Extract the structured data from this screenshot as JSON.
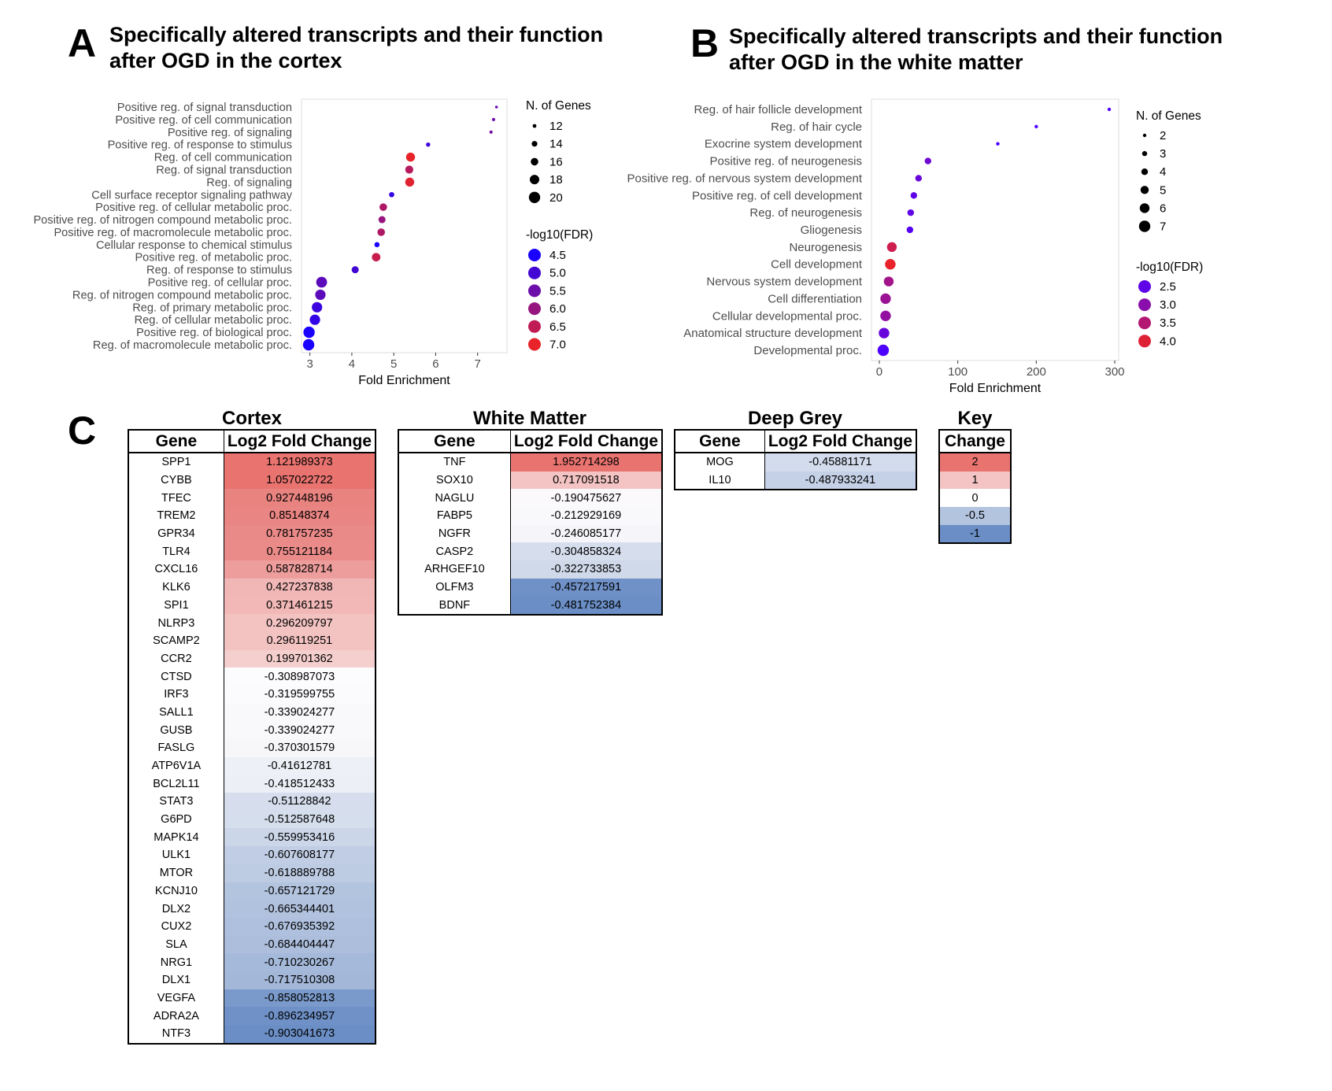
{
  "panels": {
    "a": {
      "letter": "A",
      "title": "Specifically altered transcripts and their function\nafter OGD in the cortex"
    },
    "b": {
      "letter": "B",
      "title": "Specifically altered transcripts and their function\nafter OGD in the white matter"
    },
    "c": {
      "letter": "C"
    }
  },
  "chart_data": [
    {
      "type": "scatter",
      "xlabel": "Fold Enrichment",
      "xticks": [
        3,
        4,
        5,
        6,
        7
      ],
      "xlim": [
        2.8,
        7.7
      ],
      "size_legend_title": "N. of Genes",
      "size_legend": [
        12,
        14,
        16,
        18,
        20
      ],
      "color_legend_title": "-log10(FDR)",
      "color_legend": [
        4.5,
        5.0,
        5.5,
        6.0,
        6.5,
        7.0
      ],
      "color_scale": {
        "low": "#1a00ff",
        "high": "#e8232a",
        "min": 4.5,
        "max": 7.0
      },
      "grid": false,
      "points": [
        {
          "term": "Positive reg. of signal transduction",
          "fold": 7.45,
          "genes": 11,
          "fdr": 5.4
        },
        {
          "term": "Positive reg. of cell communication",
          "fold": 7.38,
          "genes": 11.5,
          "fdr": 5.5
        },
        {
          "term": "Positive reg. of signaling",
          "fold": 7.32,
          "genes": 11.5,
          "fdr": 5.6
        },
        {
          "term": "Positive reg. of response to stimulus",
          "fold": 5.82,
          "genes": 12.5,
          "fdr": 4.9
        },
        {
          "term": "Reg. of cell communication",
          "fold": 5.4,
          "genes": 17.5,
          "fdr": 7.0
        },
        {
          "term": "Reg. of signal transduction",
          "fold": 5.37,
          "genes": 16.5,
          "fdr": 6.4
        },
        {
          "term": "Reg. of signaling",
          "fold": 5.38,
          "genes": 17.5,
          "fdr": 6.9
        },
        {
          "term": "Cell surface receptor signaling pathway",
          "fold": 4.95,
          "genes": 13.5,
          "fdr": 4.8
        },
        {
          "term": "Positive reg. of cellular metabolic proc.",
          "fold": 4.75,
          "genes": 16,
          "fdr": 6.3
        },
        {
          "term": "Positive reg. of nitrogen compound metabolic proc.",
          "fold": 4.72,
          "genes": 15.5,
          "fdr": 6.0
        },
        {
          "term": "Positive reg. of macromolecule metabolic proc.",
          "fold": 4.7,
          "genes": 16,
          "fdr": 6.3
        },
        {
          "term": "Cellular response to chemical stimulus",
          "fold": 4.6,
          "genes": 13.5,
          "fdr": 4.5
        },
        {
          "term": "Positive reg. of metabolic proc.",
          "fold": 4.58,
          "genes": 17,
          "fdr": 6.6
        },
        {
          "term": "Reg. of response to stimulus",
          "fold": 4.08,
          "genes": 15.5,
          "fdr": 5.0
        },
        {
          "term": "Positive reg. of cellular proc.",
          "fold": 3.28,
          "genes": 19.5,
          "fdr": 5.3
        },
        {
          "term": "Reg. of nitrogen compound metabolic proc.",
          "fold": 3.25,
          "genes": 19,
          "fdr": 5.3
        },
        {
          "term": "Reg. of primary metabolic proc.",
          "fold": 3.17,
          "genes": 19,
          "fdr": 4.9
        },
        {
          "term": "Reg. of cellular metabolic proc.",
          "fold": 3.12,
          "genes": 19,
          "fdr": 4.8
        },
        {
          "term": "Positive reg. of biological proc.",
          "fold": 2.98,
          "genes": 20,
          "fdr": 4.5
        },
        {
          "term": "Reg. of macromolecule metabolic proc.",
          "fold": 2.97,
          "genes": 20,
          "fdr": 4.5
        }
      ]
    },
    {
      "type": "scatter",
      "xlabel": "Fold Enrichment",
      "xticks": [
        0,
        100,
        200,
        300
      ],
      "xlim": [
        -10,
        305
      ],
      "size_legend_title": "N. of Genes",
      "size_legend": [
        2,
        3,
        4,
        5,
        6,
        7
      ],
      "color_legend_title": "-log10(FDR)",
      "color_legend": [
        2.5,
        3.0,
        3.5,
        4.0
      ],
      "color_scale": {
        "low": "#4d00ff",
        "high": "#e8232a",
        "min": 2.3,
        "max": 4.1
      },
      "grid": false,
      "points": [
        {
          "term": "Reg. of hair follicle development",
          "fold": 293,
          "genes": 2,
          "fdr": 2.3
        },
        {
          "term": "Reg. of hair cycle",
          "fold": 200,
          "genes": 2,
          "fdr": 2.3
        },
        {
          "term": "Exocrine system development",
          "fold": 151,
          "genes": 2,
          "fdr": 2.2
        },
        {
          "term": "Positive reg. of neurogenesis",
          "fold": 62,
          "genes": 4,
          "fdr": 2.7
        },
        {
          "term": "Positive reg. of nervous system development",
          "fold": 50,
          "genes": 4,
          "fdr": 2.6
        },
        {
          "term": "Positive reg. of cell development",
          "fold": 44,
          "genes": 4,
          "fdr": 2.5
        },
        {
          "term": "Reg. of neurogenesis",
          "fold": 40,
          "genes": 4,
          "fdr": 2.5
        },
        {
          "term": "Gliogenesis",
          "fold": 39,
          "genes": 4,
          "fdr": 2.4
        },
        {
          "term": "Neurogenesis",
          "fold": 16,
          "genes": 6,
          "fdr": 3.8
        },
        {
          "term": "Cell development",
          "fold": 14,
          "genes": 6.5,
          "fdr": 4.1
        },
        {
          "term": "Nervous system development",
          "fold": 12,
          "genes": 6,
          "fdr": 3.3
        },
        {
          "term": "Cell differentiation",
          "fold": 8,
          "genes": 6.5,
          "fdr": 3.2
        },
        {
          "term": "Cellular developmental proc.",
          "fold": 8,
          "genes": 6.5,
          "fdr": 3.1
        },
        {
          "term": "Anatomical structure development",
          "fold": 6,
          "genes": 6.5,
          "fdr": 2.6
        },
        {
          "term": "Developmental proc.",
          "fold": 5,
          "genes": 7,
          "fdr": 2.2
        }
      ]
    }
  ],
  "tables": {
    "cortex": {
      "title": "Cortex",
      "headers": [
        "Gene",
        "Log2 Fold Change"
      ],
      "rows": [
        [
          "SPP1",
          "1.121989373",
          "#e8736f"
        ],
        [
          "CYBB",
          "1.057022722",
          "#e8736f"
        ],
        [
          "TFEC",
          "0.927448196",
          "#e98380"
        ],
        [
          "TREM2",
          "0.85148374",
          "#e98583"
        ],
        [
          "GPR34",
          "0.781757235",
          "#ea8a88"
        ],
        [
          "TLR4",
          "0.755121184",
          "#ea8b89"
        ],
        [
          "CXCL16",
          "0.587828714",
          "#ed9e9c"
        ],
        [
          "KLK6",
          "0.427237838",
          "#f1b7b6"
        ],
        [
          "SPI1",
          "0.371461215",
          "#f1b8b7"
        ],
        [
          "NLRP3",
          "0.296209797",
          "#f3c3c2"
        ],
        [
          "SCAMP2",
          "0.296119251",
          "#f3c3c2"
        ],
        [
          "CCR2",
          "0.199701362",
          "#f5cfce"
        ],
        [
          "CTSD",
          "-0.308987073",
          "#fcfbfd"
        ],
        [
          "IRF3",
          "-0.319599755",
          "#fbfafc"
        ],
        [
          "SALL1",
          "-0.339024277",
          "#f9f8fb"
        ],
        [
          "GUSB",
          "-0.339024277",
          "#f9f8fb"
        ],
        [
          "FASLG",
          "-0.370301579",
          "#f7f7fa"
        ],
        [
          "ATP6V1A",
          "-0.41612781",
          "#edf0f6"
        ],
        [
          "BCL2L11",
          "-0.418512433",
          "#ecf0f6"
        ],
        [
          "STAT3",
          "-0.51128842",
          "#d6deed"
        ],
        [
          "G6PD",
          "-0.512587648",
          "#d5deec"
        ],
        [
          "MAPK14",
          "-0.559953416",
          "#cbd6e9"
        ],
        [
          "ULK1",
          "-0.607608177",
          "#c0cde4"
        ],
        [
          "MTOR",
          "-0.618889788",
          "#bdcbe3"
        ],
        [
          "KCNJ10",
          "-0.657121729",
          "#b3c4df"
        ],
        [
          "DLX2",
          "-0.665344401",
          "#b1c2de"
        ],
        [
          "CUX2",
          "-0.676935392",
          "#aec0dd"
        ],
        [
          "SLA",
          "-0.684404447",
          "#acbedc"
        ],
        [
          "NRG1",
          "-0.710230267",
          "#a5b9da"
        ],
        [
          "DLX1",
          "-0.717510308",
          "#a3b7d9"
        ],
        [
          "VEGFA",
          "-0.858052813",
          "#7a9acb"
        ],
        [
          "ADRA2A",
          "-0.896234957",
          "#6f91c7"
        ],
        [
          "NTF3",
          "-0.903041673",
          "#6a8ec5"
        ]
      ]
    },
    "white_matter": {
      "title": "White Matter",
      "headers": [
        "Gene",
        "Log2 Fold Change"
      ],
      "rows": [
        [
          "TNF",
          "1.952714298",
          "#e8736f"
        ],
        [
          "SOX10",
          "0.717091518",
          "#f3c4c3"
        ],
        [
          "NAGLU",
          "-0.190475627",
          "#fbf9fc"
        ],
        [
          "FABP5",
          "-0.212929169",
          "#f9f8fb"
        ],
        [
          "NGFR",
          "-0.246085177",
          "#f6f5f9"
        ],
        [
          "CASP2",
          "-0.304858324",
          "#d6deed"
        ],
        [
          "ARHGEF10",
          "-0.322733853",
          "#d0d9ea"
        ],
        [
          "OLFM3",
          "-0.457217591",
          "#6f91c7"
        ],
        [
          "BDNF",
          "-0.481752384",
          "#6a8ec5"
        ]
      ]
    },
    "deep_grey": {
      "title": "Deep Grey",
      "headers": [
        "Gene",
        "Log2 Fold Change"
      ],
      "rows": [
        [
          "MOG",
          "-0.45881171",
          "#d3dcec"
        ],
        [
          "IL10",
          "-0.487933241",
          "#c5d1e7"
        ]
      ]
    },
    "key": {
      "title": "Key",
      "headers": [
        "Change"
      ],
      "rows": [
        [
          "2",
          "#e8736f"
        ],
        [
          "1",
          "#f3c4c3"
        ],
        [
          "0",
          "#ffffff"
        ],
        [
          "-0.5",
          "#b3c4df"
        ],
        [
          "-1",
          "#6a8ec5"
        ]
      ]
    }
  }
}
